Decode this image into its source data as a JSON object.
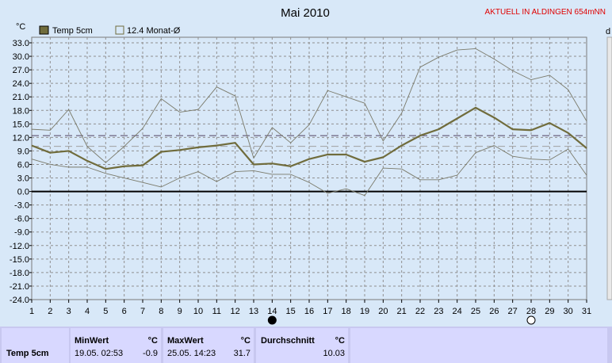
{
  "title": "Mai 2010",
  "status": "AKTUELL IN ALDINGEN 654mNN",
  "unit_label": "°C",
  "right_edge_label": "d",
  "colors": {
    "main": "#706c3c",
    "grid": "#909090",
    "title_red": "#e00000",
    "bg": "#d8e8f8"
  },
  "chart_data": {
    "type": "line",
    "x": [
      1,
      2,
      3,
      4,
      5,
      6,
      7,
      8,
      9,
      10,
      11,
      12,
      13,
      14,
      15,
      16,
      17,
      18,
      19,
      20,
      21,
      22,
      23,
      24,
      25,
      26,
      27,
      28,
      29,
      30,
      31
    ],
    "ylim": [
      -24,
      33
    ],
    "yticks": [
      "33.0",
      "30.0",
      "27.0",
      "24.0",
      "21.0",
      "18.0",
      "15.0",
      "12.0",
      "9.0",
      "6.0",
      "3.0",
      "0.0",
      "-3.0",
      "-6.0",
      "-9.0",
      "-12.0",
      "-15.0",
      "-18.0",
      "-21.0",
      "-24.0"
    ],
    "grid": true,
    "legend": [
      {
        "name": "Temp 5cm",
        "style": "filled"
      },
      {
        "name": "12.4 Monat-Ø",
        "style": "outline"
      }
    ],
    "series": [
      {
        "name": "Temp 5cm",
        "values": [
          10.2,
          8.6,
          9.0,
          6.8,
          5.0,
          5.6,
          5.8,
          8.8,
          9.2,
          9.8,
          10.2,
          10.8,
          6.0,
          6.2,
          5.6,
          7.2,
          8.2,
          8.2,
          6.6,
          7.6,
          10.2,
          12.4,
          13.8,
          16.2,
          18.6,
          16.4,
          13.8,
          13.6,
          15.2,
          13.0,
          9.6
        ]
      },
      {
        "values": [
          13.8,
          13.6,
          18.2,
          10.0,
          6.4,
          10.0,
          14.0,
          20.6,
          17.6,
          18.2,
          23.2,
          21.2,
          7.4,
          14.2,
          10.8,
          14.8,
          22.4,
          21.0,
          19.6,
          11.2,
          17.4,
          27.6,
          29.8,
          31.4,
          31.7,
          29.4,
          26.8,
          24.8,
          25.8,
          22.6,
          15.6
        ]
      },
      {
        "values": [
          7.2,
          6.0,
          5.4,
          5.4,
          4.0,
          3.0,
          2.0,
          1.0,
          3.0,
          4.4,
          2.2,
          4.4,
          4.6,
          3.8,
          3.8,
          2.0,
          -0.4,
          0.6,
          -0.9,
          5.2,
          5.0,
          2.6,
          2.6,
          3.6,
          8.6,
          10.2,
          7.8,
          7.2,
          7.0,
          9.4,
          3.6
        ]
      }
    ],
    "reference_lines": [
      12.4,
      10.03
    ],
    "markers": [
      {
        "x": 14,
        "type": "new-moon"
      },
      {
        "x": 28,
        "type": "full-moon"
      }
    ]
  },
  "stats": {
    "row_label": "Temp 5cm",
    "min": {
      "label": "MinWert",
      "unit": "°C",
      "time": "19.05.  02:53",
      "value": "-0.9"
    },
    "max": {
      "label": "MaxWert",
      "unit": "°C",
      "time": "25.05.  14:23",
      "value": "31.7"
    },
    "avg": {
      "label": "Durchschnitt",
      "unit": "°C",
      "value": "10.03"
    }
  }
}
